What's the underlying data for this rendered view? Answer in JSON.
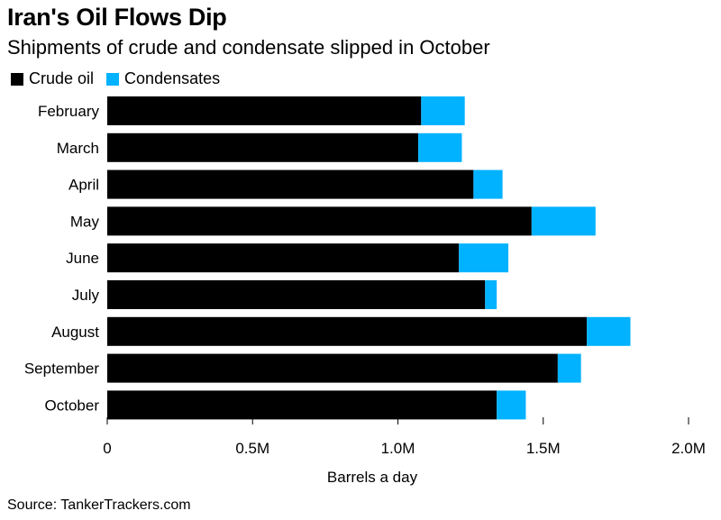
{
  "title": "Iran's Oil Flows Dip",
  "subtitle": "Shipments of crude and condensate slipped in October",
  "legend": {
    "crude_label": "Crude oil",
    "condensates_label": "Condensates"
  },
  "source": "Source: TankerTrackers.com",
  "colors": {
    "crude": "#000000",
    "condensates": "#00b2ff"
  },
  "chart_data": {
    "type": "bar",
    "orientation": "horizontal",
    "stacked": true,
    "categories": [
      "February",
      "March",
      "April",
      "May",
      "June",
      "July",
      "August",
      "September",
      "October"
    ],
    "series": [
      {
        "name": "Crude oil",
        "values": [
          1.08,
          1.07,
          1.26,
          1.46,
          1.21,
          1.3,
          1.65,
          1.55,
          1.34
        ]
      },
      {
        "name": "Condensates",
        "values": [
          0.15,
          0.15,
          0.1,
          0.22,
          0.17,
          0.04,
          0.15,
          0.08,
          0.1
        ]
      }
    ],
    "x_ticks": [
      {
        "value": 0,
        "label": "0"
      },
      {
        "value": 0.5,
        "label": "0.5M"
      },
      {
        "value": 1.0,
        "label": "1.0M"
      },
      {
        "value": 1.5,
        "label": "1.5M"
      },
      {
        "value": 2.0,
        "label": "2.0M"
      }
    ],
    "xlim": [
      0,
      2.0
    ],
    "xlabel": "Barrels a day",
    "ylabel": "",
    "grid": false,
    "legend_position": "top-left"
  }
}
